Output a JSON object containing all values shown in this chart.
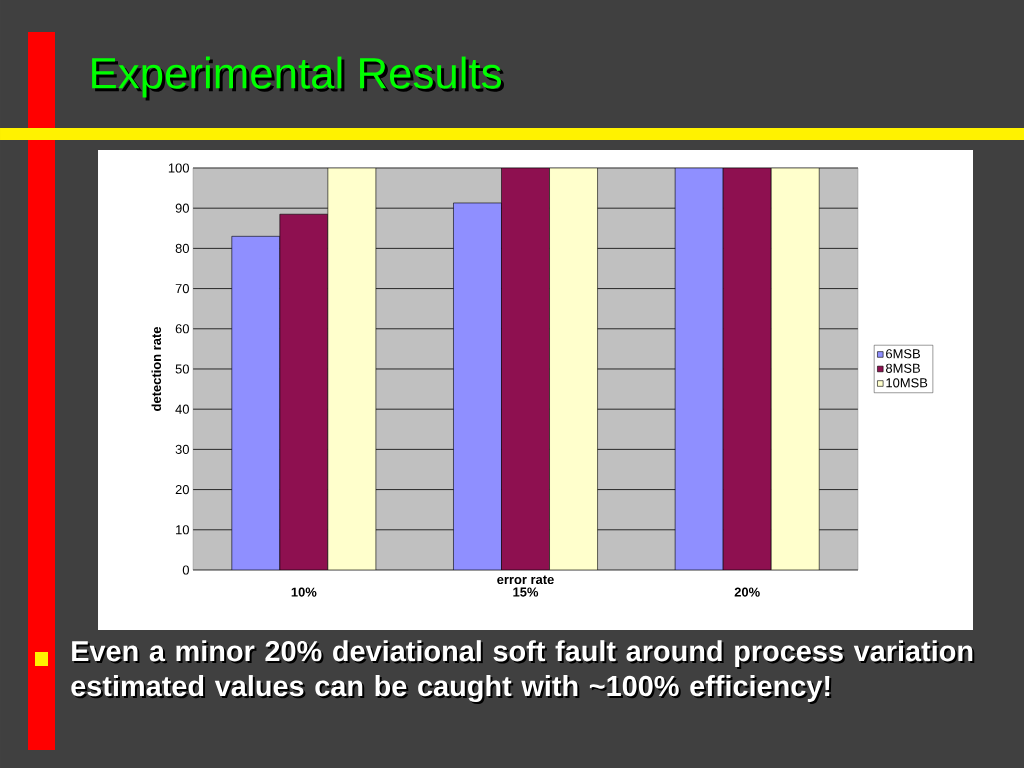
{
  "chart_data": {
    "type": "bar",
    "title": "Experimental Results",
    "xlabel": "error rate",
    "ylabel": "detection rate",
    "categories": [
      "10%",
      "15%",
      "20%"
    ],
    "series": [
      {
        "name": "6MSB",
        "color": "#8f8fff",
        "values": [
          83,
          91.3,
          100
        ]
      },
      {
        "name": "8MSB",
        "color": "#8e1050",
        "values": [
          88.5,
          100,
          100
        ]
      },
      {
        "name": "10MSB",
        "color": "#ffffcc",
        "values": [
          100,
          100,
          100
        ]
      }
    ],
    "ylim": [
      0,
      100
    ],
    "yticks": [
      0,
      10,
      20,
      30,
      40,
      50,
      60,
      70,
      80,
      90,
      100
    ],
    "grid": "y",
    "legend": "right",
    "annotations": [
      "Even a minor 20% deviational soft fault around process variation estimated values can be caught with ~100% efficiency!"
    ]
  }
}
